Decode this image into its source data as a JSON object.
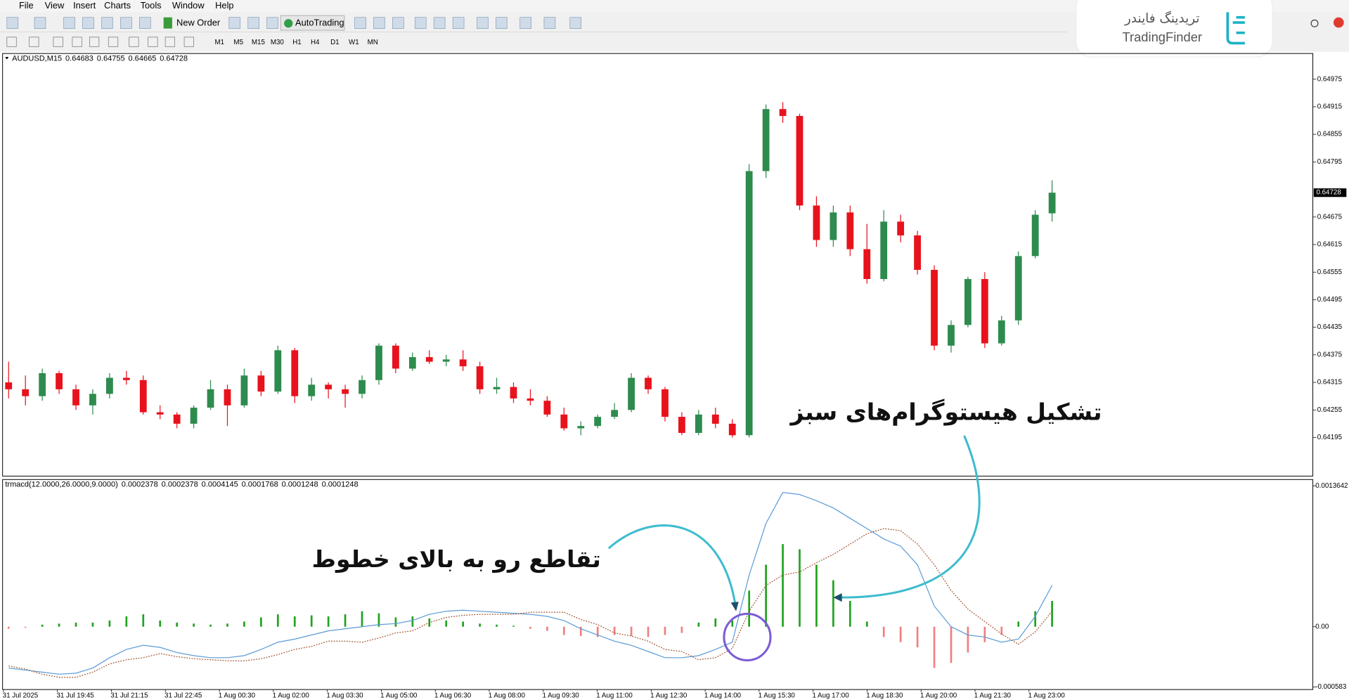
{
  "menu": [
    "File",
    "View",
    "Insert",
    "Charts",
    "Tools",
    "Window",
    "Help"
  ],
  "toolbar": {
    "new_order": "New Order",
    "autotrading": "AutoTrading",
    "timeframes": [
      "M1",
      "M5",
      "M15",
      "M30",
      "H1",
      "H4",
      "D1",
      "W1",
      "MN"
    ]
  },
  "logo": {
    "fa": "تریدینگ فایندر",
    "en": "TradingFinder"
  },
  "price_chart": {
    "symbol": "AUDUSD,M15",
    "ohlc": [
      0.64683,
      0.64755,
      0.64665,
      0.64728
    ],
    "bull_color": "#2e8b4e",
    "bear_color": "#e8121c",
    "ylim": [
      0.64111,
      0.65031
    ],
    "yticks": [
      0.64975,
      0.64915,
      0.64855,
      0.64795,
      0.64675,
      0.64615,
      0.64555,
      0.64495,
      0.64435,
      0.64375,
      0.64315,
      0.64255,
      0.64195
    ],
    "current_price": 0.64728,
    "candles": [
      [
        0.64315,
        0.6436,
        0.6428,
        0.643
      ],
      [
        0.643,
        0.6433,
        0.64265,
        0.64285
      ],
      [
        0.64285,
        0.64345,
        0.64275,
        0.64335
      ],
      [
        0.64335,
        0.6434,
        0.6429,
        0.643
      ],
      [
        0.643,
        0.6431,
        0.64255,
        0.64265
      ],
      [
        0.64265,
        0.643,
        0.64245,
        0.6429
      ],
      [
        0.6429,
        0.64335,
        0.6428,
        0.64325
      ],
      [
        0.64325,
        0.6434,
        0.6431,
        0.6432
      ],
      [
        0.6432,
        0.6433,
        0.64245,
        0.6425
      ],
      [
        0.6425,
        0.64265,
        0.64235,
        0.64245
      ],
      [
        0.64245,
        0.6425,
        0.64215,
        0.64225
      ],
      [
        0.64225,
        0.64265,
        0.64215,
        0.6426
      ],
      [
        0.6426,
        0.6432,
        0.64255,
        0.643
      ],
      [
        0.643,
        0.6431,
        0.6422,
        0.64265
      ],
      [
        0.64265,
        0.64345,
        0.6426,
        0.6433
      ],
      [
        0.6433,
        0.6434,
        0.64285,
        0.64295
      ],
      [
        0.64295,
        0.64395,
        0.6429,
        0.64385
      ],
      [
        0.64385,
        0.6439,
        0.6427,
        0.64285
      ],
      [
        0.64285,
        0.64325,
        0.64275,
        0.6431
      ],
      [
        0.6431,
        0.64315,
        0.6428,
        0.643
      ],
      [
        0.643,
        0.6431,
        0.6426,
        0.6429
      ],
      [
        0.6429,
        0.6433,
        0.6428,
        0.6432
      ],
      [
        0.6432,
        0.644,
        0.6431,
        0.64395
      ],
      [
        0.64395,
        0.644,
        0.64335,
        0.64345
      ],
      [
        0.64345,
        0.6438,
        0.6434,
        0.6437
      ],
      [
        0.6437,
        0.64385,
        0.64355,
        0.6436
      ],
      [
        0.6436,
        0.64375,
        0.6435,
        0.64365
      ],
      [
        0.64365,
        0.64385,
        0.6434,
        0.6435
      ],
      [
        0.6435,
        0.6436,
        0.6429,
        0.643
      ],
      [
        0.643,
        0.64325,
        0.6429,
        0.64305
      ],
      [
        0.64305,
        0.64315,
        0.6427,
        0.6428
      ],
      [
        0.6428,
        0.643,
        0.64265,
        0.64275
      ],
      [
        0.64275,
        0.64285,
        0.6424,
        0.64245
      ],
      [
        0.64245,
        0.6426,
        0.6421,
        0.64215
      ],
      [
        0.64215,
        0.6423,
        0.642,
        0.6422
      ],
      [
        0.6422,
        0.64245,
        0.64215,
        0.6424
      ],
      [
        0.6424,
        0.6427,
        0.64235,
        0.64255
      ],
      [
        0.64255,
        0.64335,
        0.6425,
        0.64325
      ],
      [
        0.64325,
        0.6433,
        0.6429,
        0.643
      ],
      [
        0.643,
        0.64305,
        0.6423,
        0.6424
      ],
      [
        0.6424,
        0.6425,
        0.642,
        0.64205
      ],
      [
        0.64205,
        0.64255,
        0.642,
        0.64245
      ],
      [
        0.64245,
        0.6426,
        0.64215,
        0.64225
      ],
      [
        0.64225,
        0.64235,
        0.64195,
        0.642
      ],
      [
        0.642,
        0.6479,
        0.64195,
        0.64775
      ],
      [
        0.64775,
        0.6492,
        0.6476,
        0.6491
      ],
      [
        0.6491,
        0.64925,
        0.6488,
        0.64895
      ],
      [
        0.64895,
        0.649,
        0.6469,
        0.647
      ],
      [
        0.647,
        0.6472,
        0.6461,
        0.64625
      ],
      [
        0.64625,
        0.647,
        0.6461,
        0.64685
      ],
      [
        0.64685,
        0.647,
        0.6459,
        0.64605
      ],
      [
        0.64605,
        0.6466,
        0.6453,
        0.6454
      ],
      [
        0.6454,
        0.6469,
        0.64535,
        0.64665
      ],
      [
        0.64665,
        0.6468,
        0.6462,
        0.64635
      ],
      [
        0.64635,
        0.64645,
        0.6455,
        0.6456
      ],
      [
        0.6456,
        0.6457,
        0.64385,
        0.64395
      ],
      [
        0.64395,
        0.6445,
        0.6438,
        0.6444
      ],
      [
        0.6444,
        0.64545,
        0.64435,
        0.6454
      ],
      [
        0.6454,
        0.64555,
        0.6439,
        0.644
      ],
      [
        0.644,
        0.6446,
        0.64395,
        0.6445
      ],
      [
        0.6445,
        0.646,
        0.6444,
        0.6459
      ],
      [
        0.6459,
        0.6469,
        0.64585,
        0.6468
      ],
      [
        0.64683,
        0.64755,
        0.64665,
        0.64728
      ]
    ]
  },
  "macd": {
    "name": "trmacd(12.0000,26.0000,9.0000)",
    "values": [
      0.0002378,
      0.0002378,
      0.0004145,
      0.0001768,
      0.0001248,
      0.0001248
    ],
    "hist_up_color": "#1fa31f",
    "hist_down_color": "#f08080",
    "main_color": "#5b9bd5",
    "signal_color": "#a0522d",
    "ylim": [
      -0.0006,
      0.0014
    ],
    "yticks": [
      0.0013642,
      {
        "value": 0,
        "label": "0.00"
      },
      -0.000583
    ],
    "histogram": [
      -2e-05,
      -1e-05,
      2e-05,
      3e-05,
      4e-05,
      4e-05,
      6e-05,
      0.0001,
      0.00012,
      6e-05,
      4e-05,
      3e-05,
      2e-05,
      3e-05,
      5e-05,
      9e-05,
      0.00012,
      0.0001,
      0.00011,
      0.0001,
      0.00012,
      0.00015,
      0.00013,
      9e-05,
      0.0001,
      8e-05,
      6e-05,
      5e-05,
      3e-05,
      2e-05,
      1e-05,
      -2e-05,
      -4e-05,
      -8e-05,
      -9e-05,
      -0.0001,
      -8e-05,
      -9e-05,
      -0.0001,
      -8e-05,
      -6e-05,
      4e-05,
      8e-05,
      6e-05,
      0.00035,
      0.0006,
      0.0008,
      0.00075,
      0.0006,
      0.00045,
      0.00025,
      5e-05,
      -0.0001,
      -0.00015,
      -0.0002,
      -0.0004,
      -0.00035,
      -0.00025,
      -0.00015,
      -8e-05,
      5e-05,
      0.00015,
      0.00025
    ],
    "main": [
      -0.0004,
      -0.00042,
      -0.00044,
      -0.00046,
      -0.00045,
      -0.0004,
      -0.0003,
      -0.00022,
      -0.00018,
      -0.0002,
      -0.00025,
      -0.00028,
      -0.0003,
      -0.0003,
      -0.00028,
      -0.00022,
      -0.00015,
      -0.00012,
      -8e-05,
      -4e-05,
      -2e-05,
      0,
      2e-05,
      3e-05,
      6e-05,
      0.00012,
      0.00015,
      0.00016,
      0.00015,
      0.00014,
      0.00013,
      0.00012,
      0.0001,
      6e-05,
      -2e-05,
      -8e-05,
      -0.00014,
      -0.00018,
      -0.00024,
      -0.0003,
      -0.0003,
      -0.00028,
      -0.00022,
      -0.00015,
      0.0005,
      0.001,
      0.0013,
      0.00128,
      0.00122,
      0.00115,
      0.00105,
      0.00095,
      0.00085,
      0.00078,
      0.0006,
      0.0002,
      0,
      -8e-05,
      -0.0001,
      -0.00015,
      -0.00012,
      0.0001,
      0.0004
    ],
    "signal": [
      -0.00038,
      -0.00041,
      -0.00046,
      -0.00049,
      -0.00049,
      -0.00044,
      -0.00036,
      -0.00032,
      -0.0003,
      -0.00026,
      -0.00029,
      -0.00031,
      -0.00032,
      -0.00033,
      -0.00033,
      -0.00031,
      -0.00027,
      -0.00022,
      -0.00019,
      -0.00014,
      -0.00014,
      -0.00015,
      -0.00011,
      -6e-05,
      -4e-05,
      4e-05,
      9e-05,
      0.00011,
      0.00012,
      0.00012,
      0.00012,
      0.00014,
      0.00014,
      0.00014,
      7e-05,
      2e-05,
      -6e-05,
      -9e-05,
      -0.00014,
      -0.00022,
      -0.00024,
      -0.00032,
      -0.0003,
      -0.00021,
      0.00015,
      0.0004,
      0.0005,
      0.00053,
      0.00062,
      0.0007,
      0.0008,
      0.0009,
      0.00095,
      0.00093,
      0.0008,
      0.0006,
      0.00035,
      0.00017,
      5e-05,
      -7e-05,
      -0.00017,
      -5e-05,
      0.00015
    ]
  },
  "time_labels": [
    "31 Jul 2025",
    "31 Jul 19:45",
    "31 Jul 21:15",
    "31 Jul 22:45",
    "1 Aug 00:30",
    "1 Aug 02:00",
    "1 Aug 03:30",
    "1 Aug 05:00",
    "1 Aug 06:30",
    "1 Aug 08:00",
    "1 Aug 09:30",
    "1 Aug 11:00",
    "1 Aug 12:30",
    "1 Aug 14:00",
    "1 Aug 15:30",
    "1 Aug 17:00",
    "1 Aug 18:30",
    "1 Aug 20:00",
    "1 Aug 21:30",
    "1 Aug 23:00"
  ],
  "annotations": [
    "تشکیل هیستوگرام‌های سبز",
    "تقاطع رو به بالای خطوط"
  ]
}
